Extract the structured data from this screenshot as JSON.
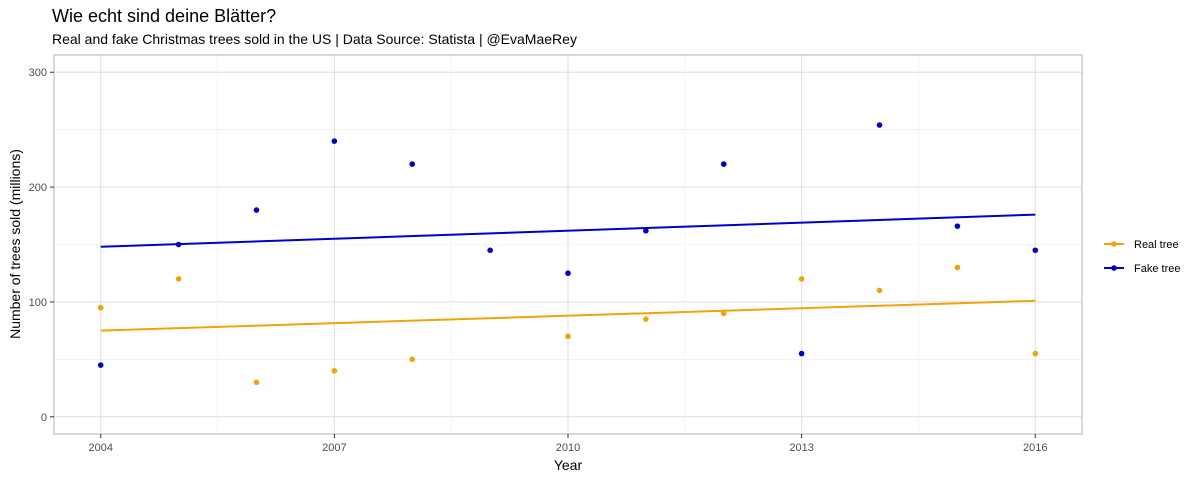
{
  "chart_data": {
    "type": "scatter",
    "title": "Wie echt sind deine Blätter?",
    "subtitle": "Real and fake Christmas trees sold in the US | Data Source: Statista | @EvaMaeRey",
    "xlabel": "Year",
    "ylabel": "Number of trees sold (millions)",
    "xlim": [
      2003.4,
      2016.6
    ],
    "ylim": [
      -15,
      315
    ],
    "x_ticks": [
      2004,
      2007,
      2010,
      2013,
      2016
    ],
    "y_ticks": [
      0,
      100,
      200,
      300
    ],
    "grid": true,
    "legend_position": "right",
    "x": [
      2004,
      2005,
      2006,
      2007,
      2008,
      2009,
      2010,
      2011,
      2012,
      2013,
      2014,
      2015,
      2016
    ],
    "series": [
      {
        "name": "Real tree",
        "color": "#f0a30a",
        "x": [
          2004,
          2005,
          2006,
          2007,
          2008,
          2010,
          2011,
          2012,
          2013,
          2014,
          2015,
          2016
        ],
        "values": [
          95,
          120,
          30,
          40,
          50,
          70,
          85,
          90,
          120,
          110,
          130,
          55
        ],
        "trend": [
          75,
          101
        ]
      },
      {
        "name": "Fake tree",
        "color": "#0000cc",
        "x": [
          2004,
          2005,
          2006,
          2007,
          2008,
          2009,
          2010,
          2011,
          2012,
          2013,
          2014,
          2015,
          2016
        ],
        "values": [
          45,
          150,
          180,
          240,
          220,
          145,
          125,
          162,
          220,
          55,
          254,
          166,
          145
        ],
        "trend": [
          148,
          176
        ]
      }
    ]
  }
}
